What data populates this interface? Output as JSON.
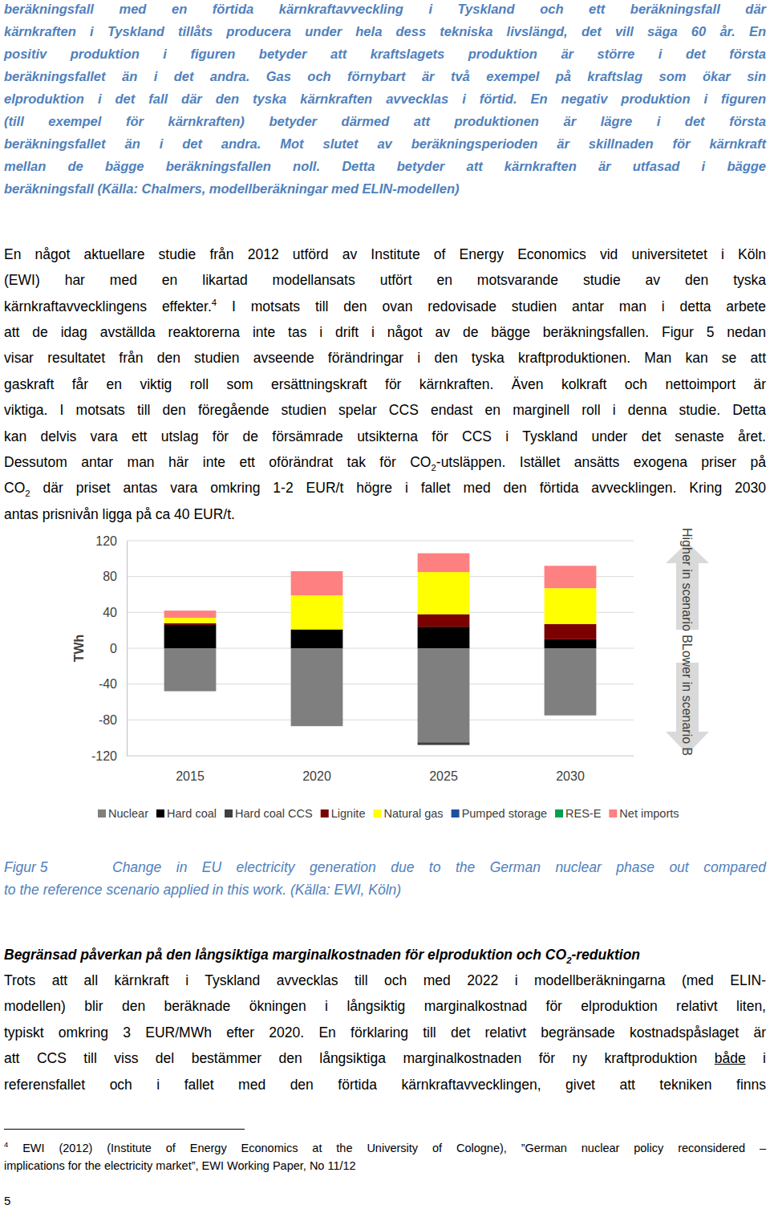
{
  "figure4_caption_end": {
    "lines": [
      [
        "beräkningsfall med en förtida kärnkraftavveckling i Tyskland och ett beräkningsfall där"
      ],
      [
        "kärnkraften i Tyskland tillåts producera under hela dess tekniska livslängd, det vill säga 60 år. En"
      ],
      [
        "positiv produktion i figuren betyder att kraftslagets produktion är större i det första"
      ],
      [
        "beräkningsfallet än i det andra. Gas och förnybart är två exempel på kraftslag som ökar sin"
      ],
      [
        "elproduktion i det fall där den tyska kärnkraften avvecklas i förtid. En negativ produktion i figuren"
      ],
      [
        "(till exempel för kärnkraften) betyder därmed att produktionen är lägre i det första"
      ],
      [
        "beräkningsfallet än i det andra. Mot slutet av beräkningsperioden är skillnaden för kärnkraft"
      ],
      [
        "mellan de bägge beräkningsfallen noll. Detta betyder att kärnkraften är utfasad i bägge"
      ],
      [
        "beräkningsfall (Källa: Chalmers, modellberäkningar med ELIN-modellen)"
      ]
    ]
  },
  "body_1": {
    "lines": [
      [
        "En något aktuellare studie från 2012 utförd av Institute of Energy Economics vid universitetet i Köln"
      ],
      [
        "(EWI) har med en likartad modellansats utfört en motsvarande studie av den tyska"
      ],
      [
        "kärnkraftavvecklingens effekter.",
        {
          "text": "4",
          "format": "sup"
        },
        " I motsats till den ovan redovisade studien antar man i detta arbete"
      ],
      [
        "att de idag avställda reaktorerna inte tas i drift i något av de bägge beräkningsfallen. Figur 5 nedan"
      ],
      [
        "visar resultatet från den studien avseende förändringar i den tyska kraftproduktionen. Man kan se att"
      ],
      [
        "gaskraft får en viktig roll som ersättningskraft för kärnkraften. Även kolkraft och nettoimport är"
      ],
      [
        "viktiga. I motsats till den föregående studien spelar CCS endast en marginell roll i denna studie. Detta"
      ],
      [
        "kan delvis vara ett utslag för de försämrade utsikterna för CCS i Tyskland under det senaste året."
      ],
      [
        "Dessutom antar man här inte ett oförändrat tak för CO",
        {
          "text": "2",
          "format": "sub"
        },
        "-utsläppen. Istället ansätts exogena priser på"
      ],
      [
        "CO",
        {
          "text": "2",
          "format": "sub"
        },
        " där priset antas vara omkring 1-2 EUR/t högre i fallet med den förtida avvecklingen. Kring 2030"
      ],
      [
        "antas prisnivån ligga på ca 40 EUR/t."
      ]
    ]
  },
  "chart_data": {
    "type": "bar",
    "stacked": true,
    "y_label": "TWh",
    "categories": [
      "2015",
      "2020",
      "2025",
      "2030"
    ],
    "ylim": [
      -120,
      120
    ],
    "yticks": [
      -120,
      -80,
      -40,
      0,
      40,
      80,
      120
    ],
    "grid": true,
    "legend": "bottom",
    "annotations": [
      "Higher in scenario B",
      "Lower in scenario B"
    ],
    "series": [
      {
        "name": "Nuclear",
        "color": "#7f7f7f",
        "values": [
          -48,
          -87,
          -105,
          -75
        ]
      },
      {
        "name": "Hard coal",
        "color": "#000000",
        "values": [
          26,
          21,
          24,
          10
        ]
      },
      {
        "name": "Hard coal CCS",
        "color": "#3f3f3f",
        "values": [
          0,
          0,
          -3,
          0
        ]
      },
      {
        "name": "Lignite",
        "color": "#7b0000",
        "values": [
          2,
          0,
          14,
          17
        ]
      },
      {
        "name": "Natural gas",
        "color": "#ffff00",
        "values": [
          6,
          38,
          47,
          40
        ]
      },
      {
        "name": "Pumped storage",
        "color": "#1f4e9c",
        "values": [
          0,
          0,
          0,
          0
        ]
      },
      {
        "name": "RES-E",
        "color": "#00a050",
        "values": [
          0,
          0,
          0,
          0
        ]
      },
      {
        "name": "Net imports",
        "color": "#ff8080",
        "values": [
          8,
          27,
          21,
          25
        ]
      }
    ]
  },
  "figure5_caption": {
    "label": "Figur 5",
    "lines": [
      [
        "Change in EU electricity generation due to the German nuclear phase out compared"
      ],
      [
        "to the reference scenario applied in this work. (Källa: EWI, Köln)"
      ]
    ]
  },
  "heading": {
    "lines": [
      [
        "Begränsad påverkan på den långsiktiga marginalkostnaden för elproduktion och CO",
        {
          "text": "2",
          "format": "sub"
        },
        "-reduktion"
      ]
    ]
  },
  "body_2": {
    "lines": [
      [
        "Trots att all kärnkraft i Tyskland avvecklas till och med 2022 i modellberäkningarna (med ELIN-"
      ],
      [
        "modellen) blir den beräknade ökningen i långsiktig marginalkostnad för elproduktion relativt liten,"
      ],
      [
        "typiskt omkring 3 EUR/MWh efter 2020. En förklaring till det relativt begränsade kostnadspåslaget är"
      ],
      [
        "att CCS till viss del bestämmer den långsiktiga marginalkostnaden för ny kraftproduktion ",
        {
          "text": "både",
          "format": "underline"
        },
        " i"
      ],
      [
        "referensfallet och i fallet med den förtida kärnkraftavvecklingen, givet att tekniken finns"
      ]
    ]
  },
  "footnote": {
    "lines": [
      [
        {
          "text": "4",
          "format": "sup"
        },
        " EWI (2012) (Institute of Energy Economics at the University of Cologne), ”German nuclear policy reconsidered –"
      ],
      [
        "implications for the electricity market”, EWI Working Paper, No 11/12"
      ]
    ]
  },
  "page_number": "5"
}
